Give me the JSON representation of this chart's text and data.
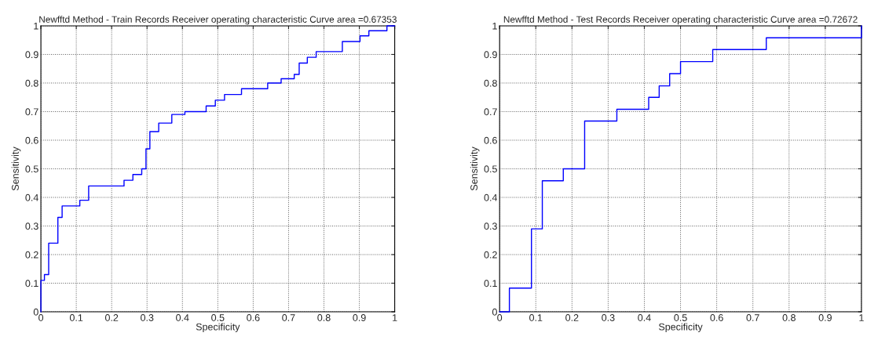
{
  "chart_data": [
    {
      "type": "step",
      "title": "Newfftd Method - Train Records Receiver operating characteristic Curve area =0.67353",
      "xlabel": "Specificity",
      "ylabel": "Sensitivity",
      "xlim": [
        0,
        1
      ],
      "ylim": [
        0,
        1
      ],
      "xticks": [
        0,
        0.1,
        0.2,
        0.3,
        0.4,
        0.5,
        0.6,
        0.7,
        0.8,
        0.9,
        1
      ],
      "yticks": [
        0,
        0.1,
        0.2,
        0.3,
        0.4,
        0.5,
        0.6,
        0.7,
        0.8,
        0.9,
        1
      ],
      "grid": true,
      "legend": false,
      "series": [
        {
          "color": "#0000ff",
          "x": [
            0,
            0,
            0.01,
            0.022,
            0.048,
            0.06,
            0.11,
            0.135,
            0.235,
            0.26,
            0.285,
            0.297,
            0.308,
            0.333,
            0.37,
            0.407,
            0.467,
            0.493,
            0.519,
            0.567,
            0.641,
            0.679,
            0.716,
            0.73,
            0.753,
            0.778,
            0.852,
            0.902,
            0.927,
            0.978,
            1
          ],
          "values": [
            0,
            0.11,
            0.13,
            0.24,
            0.33,
            0.37,
            0.39,
            0.44,
            0.46,
            0.48,
            0.5,
            0.57,
            0.63,
            0.66,
            0.69,
            0.7,
            0.72,
            0.74,
            0.76,
            0.78,
            0.8,
            0.815,
            0.83,
            0.87,
            0.89,
            0.91,
            0.945,
            0.965,
            0.983,
            1,
            1
          ]
        }
      ]
    },
    {
      "type": "step",
      "title": "Newfftd Method - Test Records Receiver operating characteristic Curve area =0.72672",
      "xlabel": "Specificity",
      "ylabel": "Sensitivity",
      "xlim": [
        0,
        1
      ],
      "ylim": [
        0,
        1
      ],
      "xticks": [
        0,
        0.1,
        0.2,
        0.3,
        0.4,
        0.5,
        0.6,
        0.7,
        0.8,
        0.9,
        1
      ],
      "yticks": [
        0,
        0.1,
        0.2,
        0.3,
        0.4,
        0.5,
        0.6,
        0.7,
        0.8,
        0.9,
        1
      ],
      "grid": true,
      "legend": false,
      "series": [
        {
          "color": "#0000ff",
          "x": [
            0,
            0.027,
            0.088,
            0.118,
            0.176,
            0.235,
            0.324,
            0.412,
            0.441,
            0.47,
            0.5,
            0.589,
            0.737,
            1,
            1
          ],
          "values": [
            0,
            0.083,
            0.29,
            0.458,
            0.5,
            0.667,
            0.708,
            0.75,
            0.79,
            0.833,
            0.875,
            0.917,
            0.958,
            0.958,
            1
          ]
        }
      ]
    }
  ]
}
